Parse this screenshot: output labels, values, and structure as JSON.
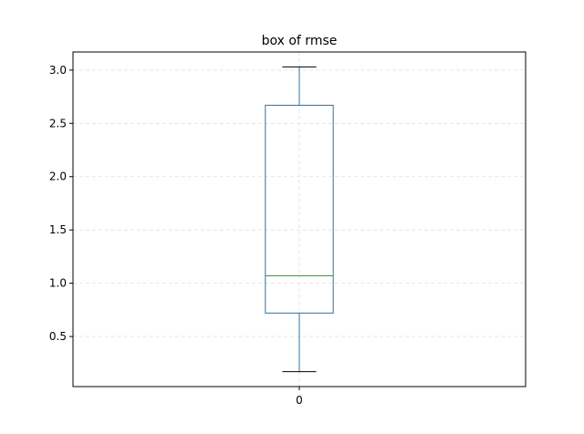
{
  "chart_data": {
    "type": "box",
    "title": "box of rmse",
    "xlabel": "",
    "ylabel": "",
    "categories": [
      "0"
    ],
    "boxes": [
      {
        "whisker_low": 0.17,
        "q1": 0.72,
        "median": 1.07,
        "q3": 2.67,
        "whisker_high": 3.03
      }
    ],
    "ylim": [
      0.03,
      3.17
    ],
    "yticks": [
      0.5,
      1.0,
      1.5,
      2.0,
      2.5,
      3.0
    ],
    "ytick_labels": [
      "0.5",
      "1.0",
      "1.5",
      "2.0",
      "2.5",
      "3.0"
    ],
    "grid": true,
    "colors": {
      "box": "#1f77b4",
      "median": "#2ca02c",
      "whisker_cap": "#000000",
      "grid": "#e0e0e0"
    }
  }
}
